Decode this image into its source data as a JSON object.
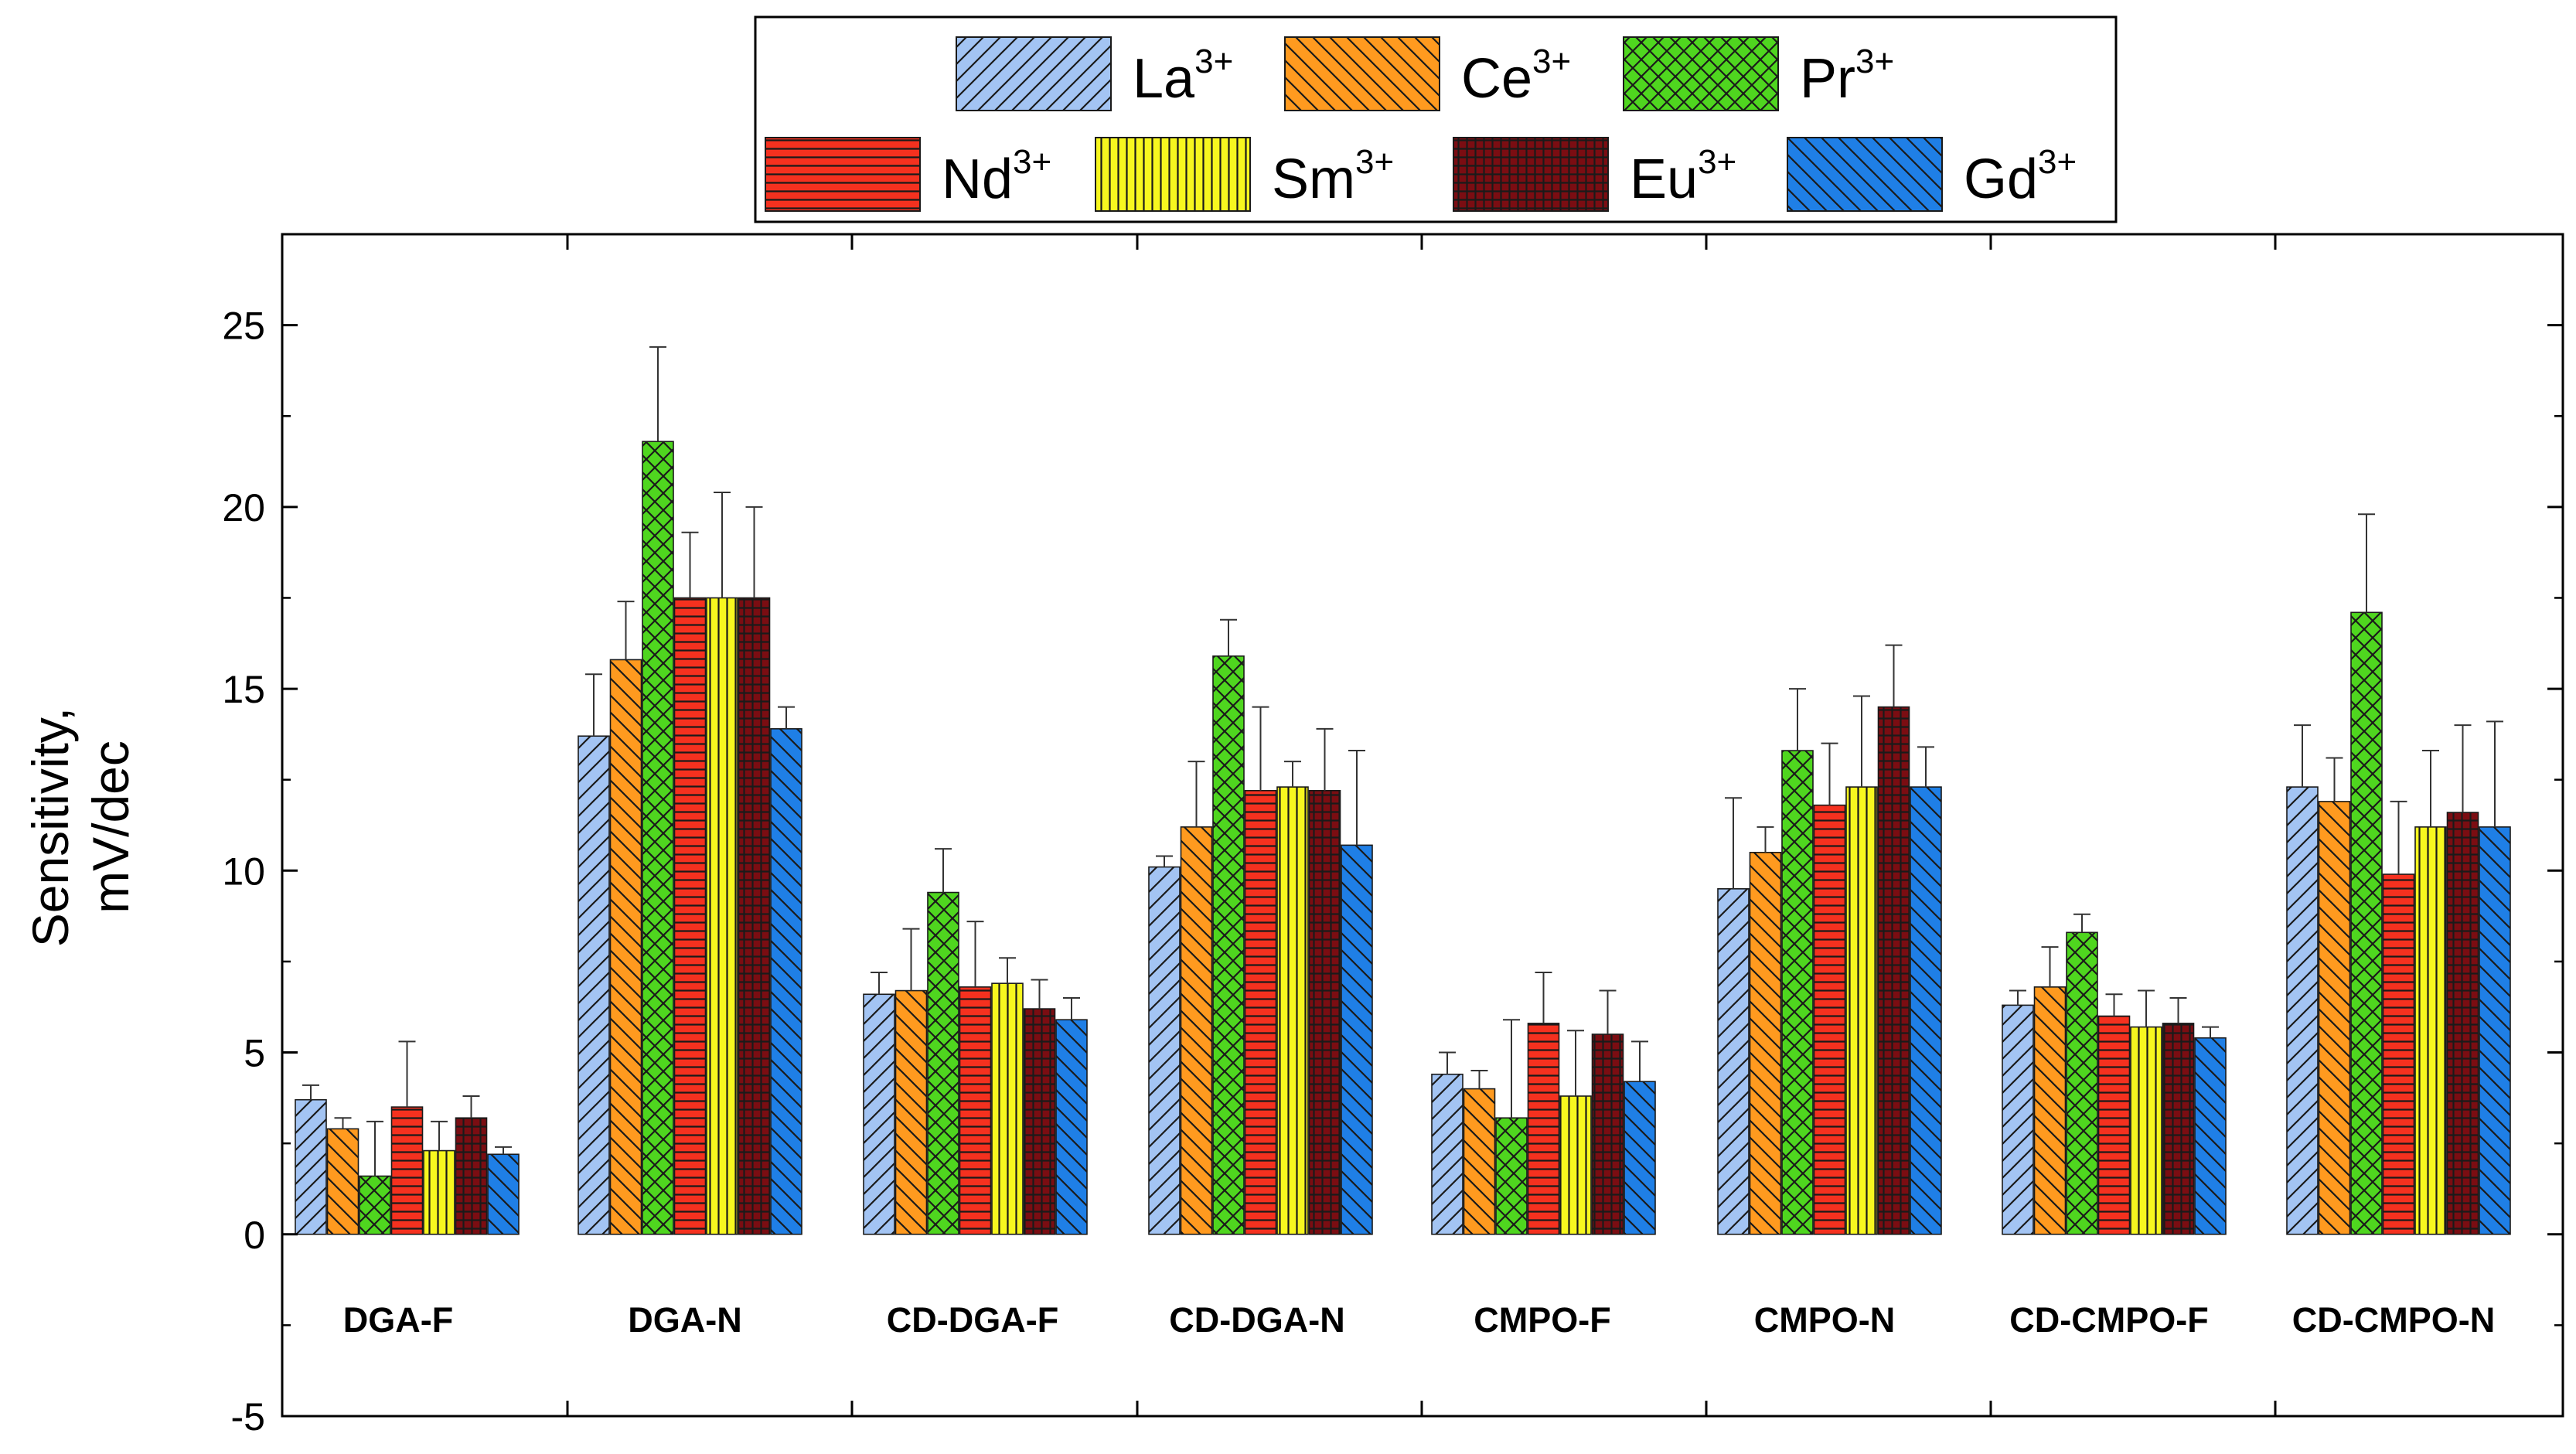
{
  "chart_data": {
    "type": "bar",
    "ylabel_line1": "Sensitivity,",
    "ylabel_line2": "mV/dec",
    "xlabel": "",
    "ylim": [
      -5,
      27.5
    ],
    "yticks": [
      -5,
      0,
      5,
      10,
      15,
      20,
      25
    ],
    "categories": [
      "DGA-F",
      "DGA-N",
      "CD-DGA-F",
      "CD-DGA-N",
      "CMPO-F",
      "CMPO-N",
      "CD-CMPO-F",
      "CD-CMPO-N"
    ],
    "series": [
      {
        "name": "La",
        "sup": "3+",
        "color": "#a3c4f3",
        "pattern": "forward-diagonal",
        "values": [
          3.7,
          13.7,
          6.6,
          10.1,
          4.4,
          9.5,
          6.3,
          12.3
        ],
        "errors": [
          0.4,
          1.7,
          0.6,
          0.3,
          0.6,
          2.5,
          0.4,
          1.7
        ]
      },
      {
        "name": "Ce",
        "sup": "3+",
        "color": "#ff9a1f",
        "pattern": "back-diagonal",
        "values": [
          2.9,
          15.8,
          6.7,
          11.2,
          4.0,
          10.5,
          6.8,
          11.9
        ],
        "errors": [
          0.3,
          1.6,
          1.7,
          1.8,
          0.5,
          0.7,
          1.1,
          1.2
        ]
      },
      {
        "name": "Pr",
        "sup": "3+",
        "color": "#4fd61f",
        "pattern": "crosshatch",
        "values": [
          1.6,
          21.8,
          9.4,
          15.9,
          3.2,
          13.3,
          8.3,
          17.1
        ],
        "errors": [
          1.5,
          2.6,
          1.2,
          1.0,
          2.7,
          1.7,
          0.5,
          2.7
        ]
      },
      {
        "name": "Nd",
        "sup": "3+",
        "color": "#f5311f",
        "pattern": "horizontal",
        "values": [
          3.5,
          17.5,
          6.8,
          12.2,
          5.8,
          11.8,
          6.0,
          9.9
        ],
        "errors": [
          1.8,
          1.8,
          1.8,
          2.3,
          1.4,
          1.7,
          0.6,
          2.0
        ]
      },
      {
        "name": "Sm",
        "sup": "3+",
        "color": "#f7f71f",
        "pattern": "vertical",
        "values": [
          2.3,
          17.5,
          6.9,
          12.3,
          3.8,
          12.3,
          5.7,
          11.2
        ],
        "errors": [
          0.8,
          2.9,
          0.7,
          0.7,
          1.8,
          2.5,
          1.0,
          2.1
        ]
      },
      {
        "name": "Eu",
        "sup": "3+",
        "color": "#7b0d12",
        "pattern": "grid",
        "values": [
          3.2,
          17.5,
          6.2,
          12.2,
          5.5,
          14.5,
          5.8,
          11.6
        ],
        "errors": [
          0.6,
          2.5,
          0.8,
          1.7,
          1.2,
          1.7,
          0.7,
          2.4
        ]
      },
      {
        "name": "Gd",
        "sup": "3+",
        "color": "#1f7fe6",
        "pattern": "back-diagonal",
        "values": [
          2.2,
          13.9,
          5.9,
          10.7,
          4.2,
          12.3,
          5.4,
          11.2
        ],
        "errors": [
          0.2,
          0.6,
          0.6,
          2.6,
          1.1,
          1.1,
          0.3,
          2.9
        ]
      }
    ],
    "grid": false,
    "legend_position": "top-center"
  }
}
